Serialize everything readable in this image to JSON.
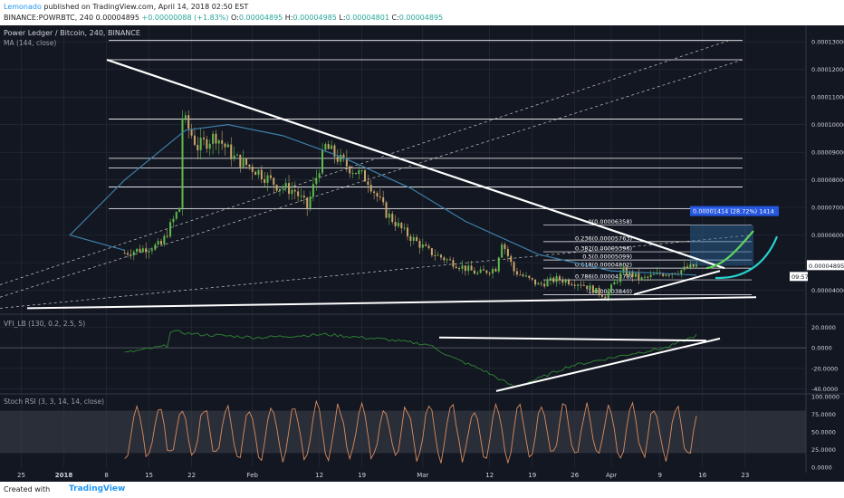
{
  "header": {
    "author": "Lemonado",
    "published": "published on TradingView.com, April 14, 2018 02:50 EST",
    "symbol_line": "BINANCE:POWRBTC, 240",
    "o_label": "O:",
    "o_value": "0.00004895",
    "h_label": "H:",
    "h_value": "0.00004985",
    "l_label": "L:",
    "l_value": "0.00004801",
    "c_label": "C:",
    "c_value": "0.00004895",
    "change": "+0.00000088 (+1.83%)"
  },
  "footer": {
    "created_with": "Created with",
    "brand": "TradingView"
  },
  "colors": {
    "background": "#131722",
    "grid": "#2a2e39",
    "text": "#d1d4dc",
    "up": "#26a69a",
    "down": "#ef5350",
    "candle_up": "#5fbb4b",
    "candle_down": "#c9a56a",
    "ma": "#3d7fa8",
    "vfi": "#2e7d32",
    "rsi": "#d98c5f",
    "fib": "#ffffff",
    "target": "#5fd45f",
    "alt_target": "#26d0ce",
    "highlight_box": "#2d6aa0"
  },
  "chart_data": [
    {
      "type": "candlestick",
      "title": "Power Ledger / Bitcoin, 240, BINANCE",
      "indicator": "MA (144, close)",
      "xlabel": "",
      "ylabel": "",
      "x_ticks": [
        "25",
        "2018",
        "8",
        "15",
        "22",
        "Feb",
        "12",
        "19",
        "Mar",
        "12",
        "19",
        "26",
        "Apr",
        "9",
        "16",
        "23"
      ],
      "y_ticks": [
        "0.00013000",
        "0.00012000",
        "0.00011000",
        "0.00010000",
        "0.00009000",
        "0.00008000",
        "0.00007000",
        "0.00006000",
        "0.00005000",
        "0.00004000"
      ],
      "ylim": [
        3.2e-05,
        0.000134
      ],
      "grid": true,
      "last_price": "0.00004895",
      "countdown": "09:57",
      "price_path": [
        {
          "x": "Dec 21",
          "y": 5.35e-05
        },
        {
          "x": "Dec 24",
          "y": 5.5e-05
        },
        {
          "x": "Dec 27",
          "y": 5.65e-05
        },
        {
          "x": "Dec 30",
          "y": 7e-05
        },
        {
          "x": "Jan 2",
          "y": 9.2e-05
        },
        {
          "x": "Jan 4",
          "y": 0.000119
        },
        {
          "x": "Jan 6",
          "y": 0.000105
        },
        {
          "x": "Jan 8",
          "y": 0.000112
        },
        {
          "x": "Jan 10",
          "y": 0.000115
        },
        {
          "x": "Jan 13",
          "y": 0.000108
        },
        {
          "x": "Jan 15",
          "y": 0.00011
        },
        {
          "x": "Jan 17",
          "y": 7e-05
        },
        {
          "x": "Jan 19",
          "y": 0.000105
        },
        {
          "x": "Jan 22",
          "y": 9.2e-05
        },
        {
          "x": "Jan 25",
          "y": 9.6e-05
        },
        {
          "x": "Jan 28",
          "y": 8.8e-05
        },
        {
          "x": "Feb 1",
          "y": 8.3e-05
        },
        {
          "x": "Feb 4",
          "y": 7.8e-05
        },
        {
          "x": "Feb 7",
          "y": 7.6e-05
        },
        {
          "x": "Feb 9",
          "y": 7e-05
        },
        {
          "x": "Feb 12",
          "y": 9.2e-05
        },
        {
          "x": "Feb 15",
          "y": 8.6e-05
        },
        {
          "x": "Feb 19",
          "y": 8e-05
        },
        {
          "x": "Feb 22",
          "y": 6.8e-05
        },
        {
          "x": "Feb 25",
          "y": 6.1e-05
        },
        {
          "x": "Mar 1",
          "y": 5.4e-05
        },
        {
          "x": "Mar 5",
          "y": 5e-05
        },
        {
          "x": "Mar 9",
          "y": 4.6e-05
        },
        {
          "x": "Mar 12",
          "y": 4.8e-05
        },
        {
          "x": "Mar 13",
          "y": 5.8e-05
        },
        {
          "x": "Mar 15",
          "y": 4.7e-05
        },
        {
          "x": "Mar 19",
          "y": 4.2e-05
        },
        {
          "x": "Mar 22",
          "y": 4.4e-05
        },
        {
          "x": "Mar 26",
          "y": 4.25e-05
        },
        {
          "x": "Mar 30",
          "y": 3.8e-05
        },
        {
          "x": "Apr 2",
          "y": 4.7e-05
        },
        {
          "x": "Apr 5",
          "y": 4.4e-05
        },
        {
          "x": "Apr 8",
          "y": 4.6e-05
        },
        {
          "x": "Apr 11",
          "y": 4.7e-05
        },
        {
          "x": "Apr 14",
          "y": 4.89e-05
        }
      ],
      "ma_path": [
        {
          "x": "Dec 21",
          "y": 5.45e-05
        },
        {
          "x": "Jan 1",
          "y": 6e-05
        },
        {
          "x": "Jan 10",
          "y": 8e-05
        },
        {
          "x": "Jan 20",
          "y": 9.8e-05
        },
        {
          "x": "Jan 27",
          "y": 0.0001
        },
        {
          "x": "Feb 5",
          "y": 9.6e-05
        },
        {
          "x": "Feb 15",
          "y": 8.8e-05
        },
        {
          "x": "Feb 26",
          "y": 7.7e-05
        },
        {
          "x": "Mar 7",
          "y": 6.5e-05
        },
        {
          "x": "Mar 19",
          "y": 5.3e-05
        },
        {
          "x": "Mar 31",
          "y": 4.7e-05
        },
        {
          "x": "Apr 14",
          "y": 4.55e-05
        }
      ],
      "fib_levels": [
        {
          "label": "0(0.00006358)",
          "value": 6.358e-05
        },
        {
          "label": "0.236(0.00005763)",
          "value": 5.763e-05
        },
        {
          "label": "0.382(0.00005396)",
          "value": 5.396e-05
        },
        {
          "label": "0.5(0.00005099)",
          "value": 5.099e-05
        },
        {
          "label": "0.618(0.00004802)",
          "value": 4.802e-05
        },
        {
          "label": "0.786(0.00004378)",
          "value": 4.378e-05
        },
        {
          "label": "1(0.00003840)",
          "value": 3.84e-05
        }
      ],
      "measure_label": "0.00001414 (28.72%) 1414"
    },
    {
      "type": "line",
      "title": "VFI_LB (130, 0.2, 2.5, 5)",
      "y_ticks": [
        "20.0000",
        "0.0000",
        "-20.0000",
        "-40.0000"
      ],
      "ylim": [
        -43,
        30
      ],
      "series": [
        {
          "name": "VFI_LB",
          "values": [
            {
              "x": "Dec 21",
              "y": -5
            },
            {
              "x": "Dec 28",
              "y": 2
            },
            {
              "x": "Jan 4",
              "y": 18
            },
            {
              "x": "Jan 12",
              "y": 20
            },
            {
              "x": "Jan 22",
              "y": 13
            },
            {
              "x": "Feb 1",
              "y": 10
            },
            {
              "x": "Feb 12",
              "y": 13
            },
            {
              "x": "Feb 22",
              "y": 8
            },
            {
              "x": "Mar 1",
              "y": 3
            },
            {
              "x": "Mar 5",
              "y": -10
            },
            {
              "x": "Mar 10",
              "y": -22
            },
            {
              "x": "Mar 15",
              "y": -38
            },
            {
              "x": "Mar 19",
              "y": -30
            },
            {
              "x": "Mar 24",
              "y": -18
            },
            {
              "x": "Mar 29",
              "y": -12
            },
            {
              "x": "Apr 4",
              "y": -5
            },
            {
              "x": "Apr 9",
              "y": 0
            },
            {
              "x": "Apr 14",
              "y": 12
            }
          ]
        }
      ]
    },
    {
      "type": "line",
      "title": "Stoch RSI (3, 3, 14, 14, close)",
      "y_ticks": [
        "100.0000",
        "75.0000",
        "50.0000",
        "25.0000",
        "0.0000"
      ],
      "ylim": [
        0,
        100
      ],
      "band": [
        20,
        80
      ]
    }
  ]
}
